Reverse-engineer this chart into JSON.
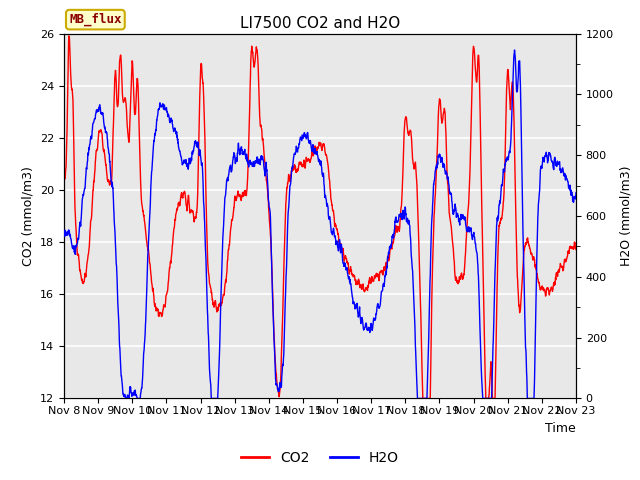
{
  "title": "LI7500 CO2 and H2O",
  "xlabel": "Time",
  "ylabel_left": "CO2 (mmol/m3)",
  "ylabel_right": "H2O (mmol/m3)",
  "ylim_left": [
    12,
    26
  ],
  "ylim_right": [
    0,
    1200
  ],
  "x_tick_labels": [
    "Nov 8",
    "Nov 9",
    "Nov 10",
    "Nov 11",
    "Nov 12",
    "Nov 13",
    "Nov 14",
    "Nov 15",
    "Nov 16",
    "Nov 17",
    "Nov 18",
    "Nov 19",
    "Nov 20",
    "Nov 21",
    "Nov 22",
    "Nov 23"
  ],
  "co2_color": "#FF0000",
  "h2o_color": "#0000FF",
  "legend_label_co2": "CO2",
  "legend_label_h2o": "H2O",
  "text_box_label": "MB_flux",
  "text_box_facecolor": "#FFFFCC",
  "text_box_edgecolor": "#CCAA00",
  "background_color": "#E8E8E8",
  "grid_color": "#FFFFFF",
  "title_fontsize": 11,
  "axis_label_fontsize": 9,
  "tick_fontsize": 8,
  "legend_fontsize": 10,
  "line_width": 1.0,
  "fig_width": 6.4,
  "fig_height": 4.8,
  "dpi": 100
}
